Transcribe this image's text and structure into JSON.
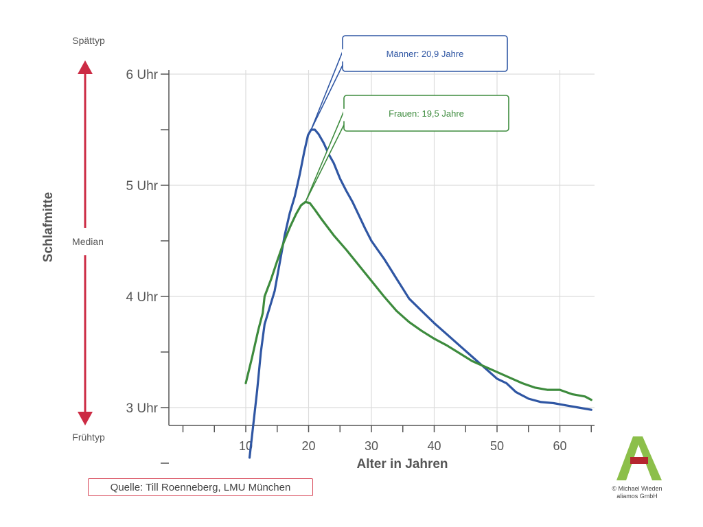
{
  "chart_data": {
    "type": "line",
    "xlabel": "Alter in Jahren",
    "ylabel": "Schlafmitte",
    "xlim": [
      0,
      65
    ],
    "ylim": [
      2.5,
      6.1
    ],
    "x_ticks": [
      10,
      20,
      30,
      40,
      50,
      60
    ],
    "y_ticks": [
      {
        "value": 3,
        "label": "3 Uhr"
      },
      {
        "value": 4,
        "label": "4 Uhr"
      },
      {
        "value": 5,
        "label": "5 Uhr"
      },
      {
        "value": 6,
        "label": "6 Uhr"
      }
    ],
    "grid": true,
    "series": [
      {
        "name": "Männer",
        "color": "#2f56a3",
        "x": [
          10.6,
          11.2,
          11.8,
          12.4,
          13,
          13.8,
          14.6,
          15.4,
          16.2,
          17,
          17.8,
          18.6,
          19.3,
          19.9,
          20.4,
          21,
          21.6,
          22.4,
          23.2,
          24,
          25,
          26,
          27,
          28,
          29,
          30,
          31,
          32,
          33,
          34,
          35,
          36,
          38,
          40,
          42,
          44,
          46,
          48,
          50,
          51.5,
          53,
          55,
          57,
          59,
          61,
          63,
          65
        ],
        "y": [
          2.55,
          2.85,
          3.15,
          3.5,
          3.75,
          3.9,
          4.05,
          4.3,
          4.55,
          4.75,
          4.9,
          5.1,
          5.3,
          5.45,
          5.5,
          5.5,
          5.46,
          5.38,
          5.28,
          5.2,
          5.06,
          4.95,
          4.85,
          4.73,
          4.61,
          4.5,
          4.42,
          4.34,
          4.25,
          4.16,
          4.07,
          3.98,
          3.87,
          3.76,
          3.66,
          3.56,
          3.46,
          3.36,
          3.26,
          3.22,
          3.14,
          3.08,
          3.05,
          3.04,
          3.02,
          3.0,
          2.98
        ],
        "peak_label": "Männer: 20,9 Jahre"
      },
      {
        "name": "Frauen",
        "color": "#3d8b3d",
        "x": [
          10,
          11,
          12,
          12.7,
          13,
          14,
          15,
          16,
          17,
          18,
          18.8,
          19.5,
          20.2,
          21,
          22,
          24,
          26,
          28,
          30,
          32,
          34,
          36,
          38,
          40,
          42,
          44,
          46,
          48,
          50,
          52,
          54,
          56,
          58,
          60,
          62,
          64,
          65
        ],
        "y": [
          3.22,
          3.45,
          3.7,
          3.85,
          4.0,
          4.15,
          4.32,
          4.48,
          4.62,
          4.74,
          4.82,
          4.85,
          4.84,
          4.78,
          4.7,
          4.55,
          4.42,
          4.28,
          4.14,
          4.0,
          3.87,
          3.77,
          3.69,
          3.62,
          3.56,
          3.49,
          3.42,
          3.37,
          3.32,
          3.27,
          3.22,
          3.18,
          3.16,
          3.16,
          3.12,
          3.1,
          3.07
        ],
        "peak_label": "Frauen: 19,5 Jahre"
      }
    ],
    "side_labels": {
      "top": "Spättyp",
      "middle": "Median",
      "bottom": "Frühtyp"
    },
    "arrow_color": "#cc2b44"
  },
  "source": "Quelle: Till Roenneberg, LMU München",
  "copyright": {
    "line1": "© Michael Wieden",
    "line2": "aliamos GmbH"
  },
  "logo": {
    "text": "aliamos",
    "letter": "A",
    "color": "#8cbf4a",
    "bar_color": "#b5262f"
  }
}
